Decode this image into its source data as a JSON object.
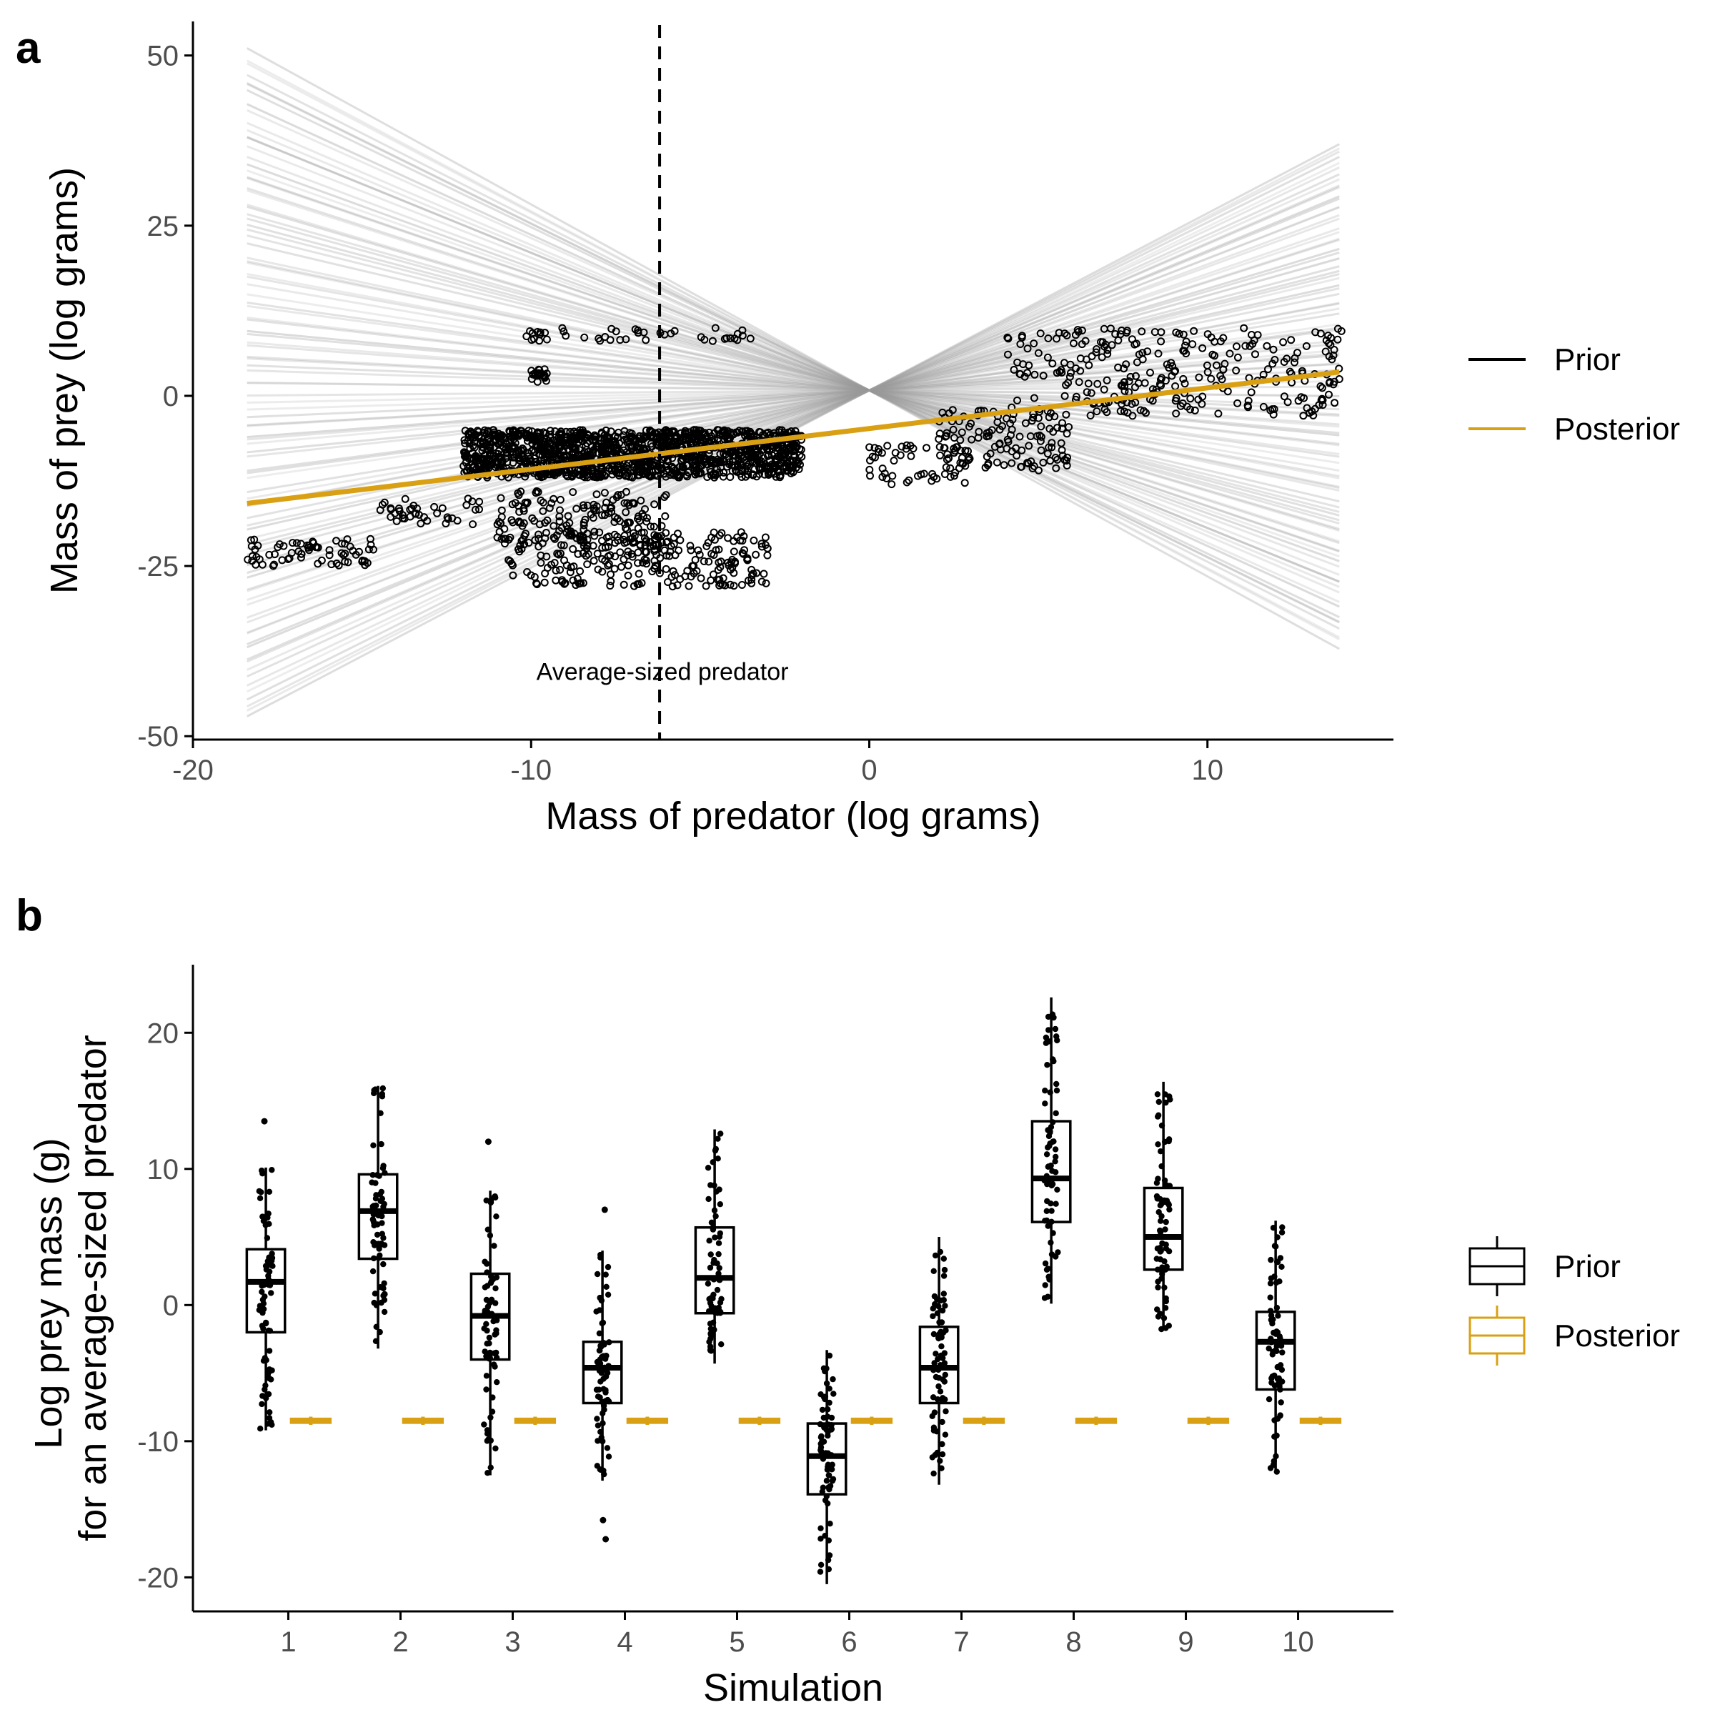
{
  "colors": {
    "prior": "#000000",
    "posterior": "#d9a013",
    "prior_line": "#9a9a9a",
    "axis": "#000000",
    "tick_text": "#4d4d4d"
  },
  "chart_data": [
    {
      "panel": "a",
      "type": "scatter",
      "xlabel": "Mass of predator (log grams)",
      "ylabel": "Mass of prey (log grams)",
      "xlim": [
        -20,
        15.5
      ],
      "ylim": [
        -50.5,
        55
      ],
      "xticks": [
        -20,
        -10,
        0,
        10
      ],
      "yticks": [
        50,
        25,
        0,
        -25,
        -50
      ],
      "x_tick_labels": [
        "-20",
        "-10",
        "0",
        "10"
      ],
      "y_tick_labels": [
        "50",
        "25",
        "0",
        "-25",
        "-50"
      ],
      "grid": false,
      "legend_position": "right",
      "legend": [
        {
          "label": "Prior",
          "color_key": "prior"
        },
        {
          "label": "Posterior",
          "color_key": "posterior"
        }
      ],
      "vline": {
        "x": -6.2,
        "style": "dashed",
        "label": "Average-sized predator"
      },
      "x_range": [
        -18.4,
        13.9
      ],
      "prior_lines": {
        "pivot_x": 0,
        "pivot_y": 0.8,
        "count": 100,
        "slope_range": [
          -2.7,
          2.6
        ],
        "extreme_y_at_xmin": [
          -46,
          50
        ],
        "extreme_y_at_xmax": [
          -36,
          33
        ]
      },
      "posterior_line": {
        "x": [
          -18.4,
          13.9
        ],
        "y": [
          -15.8,
          3.5
        ]
      },
      "point_clusters": [
        {
          "x": [
            -18.4,
            -14.5
          ],
          "y": [
            -25,
            -21
          ]
        },
        {
          "x": [
            -14.5,
            -11.5
          ],
          "y": [
            -19,
            -15
          ]
        },
        {
          "x": [
            -12,
            -2
          ],
          "y": [
            -12,
            -5
          ]
        },
        {
          "x": [
            -10.8,
            -3
          ],
          "y": [
            -28,
            -20
          ]
        },
        {
          "x": [
            -11,
            -6
          ],
          "y": [
            -22,
            -14
          ]
        },
        {
          "x": [
            -10.5,
            -3.5
          ],
          "y": [
            8,
            10
          ]
        },
        {
          "x": [
            -10,
            -9.5
          ],
          "y": [
            2,
            4
          ]
        },
        {
          "x": [
            0,
            3
          ],
          "y": [
            -13,
            -7
          ]
        },
        {
          "x": [
            2,
            6
          ],
          "y": [
            -11,
            -2
          ]
        },
        {
          "x": [
            4,
            14
          ],
          "y": [
            -3,
            10
          ]
        }
      ]
    },
    {
      "panel": "b",
      "type": "box",
      "xlabel": "Simulation",
      "ylabel": [
        "Log prey mass (g)",
        "for an average-sized predator"
      ],
      "xlim": [
        0.15,
        10.85
      ],
      "ylim": [
        -22.5,
        25
      ],
      "yticks": [
        20,
        10,
        0,
        -10,
        -20
      ],
      "y_tick_labels": [
        "20",
        "10",
        "0",
        "-10",
        "-20"
      ],
      "categories": [
        "1",
        "2",
        "3",
        "4",
        "5",
        "6",
        "7",
        "8",
        "9",
        "10"
      ],
      "grid": false,
      "legend_position": "right",
      "legend": [
        {
          "label": "Prior",
          "color_key": "prior"
        },
        {
          "label": "Posterior",
          "color_key": "posterior"
        }
      ],
      "series": [
        {
          "name": "Prior",
          "color_key": "prior",
          "boxes": [
            {
              "min": -9.2,
              "q1": -2.0,
              "median": 1.7,
              "q3": 4.1,
              "max": 10.1,
              "outliers": [
                13.5
              ]
            },
            {
              "min": -3.2,
              "q1": 3.4,
              "median": 6.9,
              "q3": 9.6,
              "max": 16.1,
              "outliers": []
            },
            {
              "min": -12.5,
              "q1": -4.0,
              "median": -0.8,
              "q3": 2.3,
              "max": 8.4,
              "outliers": [
                12.0
              ]
            },
            {
              "min": -12.9,
              "q1": -7.2,
              "median": -4.6,
              "q3": -2.7,
              "max": 4.0,
              "outliers": [
                7.0,
                -15.8,
                -17.2
              ]
            },
            {
              "min": -4.3,
              "q1": -0.6,
              "median": 2.0,
              "q3": 5.7,
              "max": 12.9,
              "outliers": []
            },
            {
              "min": -20.5,
              "q1": -13.9,
              "median": -11.1,
              "q3": -8.7,
              "max": -3.3,
              "outliers": []
            },
            {
              "min": -13.2,
              "q1": -7.2,
              "median": -4.6,
              "q3": -1.6,
              "max": 5.0,
              "outliers": []
            },
            {
              "min": 0.1,
              "q1": 6.1,
              "median": 9.3,
              "q3": 13.5,
              "max": 22.6,
              "outliers": []
            },
            {
              "min": -1.8,
              "q1": 2.6,
              "median": 5.0,
              "q3": 8.6,
              "max": 16.4,
              "outliers": []
            },
            {
              "min": -12.3,
              "q1": -6.2,
              "median": -2.7,
              "q3": -0.5,
              "max": 6.2,
              "outliers": []
            }
          ]
        },
        {
          "name": "Posterior",
          "color_key": "posterior",
          "boxes": [
            {
              "min": -8.8,
              "q1": -8.6,
              "median": -8.5,
              "q3": -8.4,
              "max": -8.2,
              "outliers": []
            },
            {
              "min": -8.8,
              "q1": -8.6,
              "median": -8.5,
              "q3": -8.4,
              "max": -8.2,
              "outliers": []
            },
            {
              "min": -8.8,
              "q1": -8.6,
              "median": -8.5,
              "q3": -8.4,
              "max": -8.2,
              "outliers": []
            },
            {
              "min": -8.8,
              "q1": -8.6,
              "median": -8.5,
              "q3": -8.4,
              "max": -8.2,
              "outliers": []
            },
            {
              "min": -8.8,
              "q1": -8.6,
              "median": -8.5,
              "q3": -8.4,
              "max": -8.2,
              "outliers": []
            },
            {
              "min": -8.8,
              "q1": -8.6,
              "median": -8.5,
              "q3": -8.4,
              "max": -8.2,
              "outliers": []
            },
            {
              "min": -8.8,
              "q1": -8.6,
              "median": -8.5,
              "q3": -8.4,
              "max": -8.2,
              "outliers": []
            },
            {
              "min": -8.8,
              "q1": -8.6,
              "median": -8.5,
              "q3": -8.4,
              "max": -8.2,
              "outliers": []
            },
            {
              "min": -8.8,
              "q1": -8.6,
              "median": -8.5,
              "q3": -8.4,
              "max": -8.2,
              "outliers": []
            },
            {
              "min": -8.8,
              "q1": -8.6,
              "median": -8.5,
              "q3": -8.4,
              "max": -8.2,
              "outliers": []
            }
          ]
        }
      ]
    }
  ]
}
